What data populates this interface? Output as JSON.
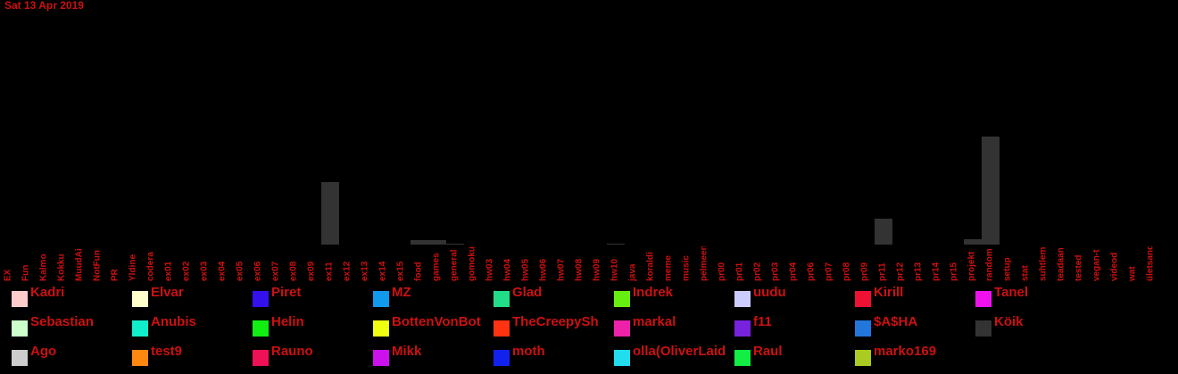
{
  "chart_data": {
    "type": "bar",
    "stacked": true,
    "title": "Sat 13 Apr 2019",
    "categories": [
      "EX",
      "Fun",
      "Kalmo",
      "Kokku",
      "MuudAi",
      "NotFun",
      "PR",
      "Yldine",
      "codera",
      "ex01",
      "ex02",
      "ex03",
      "ex04",
      "ex05",
      "ex06",
      "ex07",
      "ex08",
      "ex09",
      "ex11",
      "ex12",
      "ex13",
      "ex14",
      "ex15",
      "food",
      "games",
      "general",
      "gomoku",
      "hw03",
      "hw04",
      "hw05",
      "hw06",
      "hw07",
      "hw08",
      "hw09",
      "hw10",
      "java",
      "koraldi",
      "meme",
      "music",
      "pelmeen",
      "pr00",
      "pr01",
      "pr02",
      "pr03",
      "pr04",
      "pr06",
      "pr07",
      "pr08",
      "pr09",
      "pr11",
      "pr12",
      "pr13",
      "pr14",
      "pr15",
      "projekt",
      "random",
      "setup",
      "stat",
      "suhtlem",
      "teadaan",
      "tested",
      "vegan-t",
      "videod",
      "wat",
      "ületsand"
    ],
    "ylim": [
      0,
      260
    ],
    "series": [
      {
        "name": "Kadri",
        "color": "#ffcccc"
      },
      {
        "name": "Elvar",
        "color": "#ffffcc"
      },
      {
        "name": "Piret",
        "color": "#3311ee"
      },
      {
        "name": "MZ",
        "color": "#1199ee"
      },
      {
        "name": "Glad",
        "color": "#22dd88"
      },
      {
        "name": "Indrek",
        "color": "#66ee11"
      },
      {
        "name": "uudu",
        "color": "#ccccff"
      },
      {
        "name": "Kirill",
        "color": "#ee1133"
      },
      {
        "name": "Tanel",
        "color": "#ee11ee"
      },
      {
        "name": "Sebastian",
        "color": "#ccffcc"
      },
      {
        "name": "Anubis",
        "color": "#11eecc"
      },
      {
        "name": "Helin",
        "color": "#11ee11"
      },
      {
        "name": "BottenVonBot",
        "color": "#eeff11"
      },
      {
        "name": "TheCreepySh",
        "color": "#ff3311"
      },
      {
        "name": "markal",
        "color": "#ee22aa"
      },
      {
        "name": "f11",
        "color": "#7722dd"
      },
      {
        "name": "$A$HA",
        "color": "#2277dd"
      },
      {
        "name": "Köik",
        "color": "#333333",
        "values": [
          0,
          0,
          0,
          0,
          0,
          0,
          0,
          0,
          0,
          0,
          0,
          0,
          0,
          0,
          0,
          0,
          0,
          0,
          70,
          0,
          0,
          0,
          0,
          5,
          5,
          1,
          0,
          0,
          0,
          0,
          0,
          0,
          0,
          0,
          1,
          0,
          0,
          0,
          0,
          0,
          0,
          0,
          0,
          0,
          0,
          0,
          0,
          0,
          0,
          29,
          0,
          0,
          0,
          0,
          6,
          121,
          0,
          0,
          0,
          0,
          0,
          0,
          0,
          0,
          0
        ]
      },
      {
        "name": "Ago",
        "color": "#cccccc"
      },
      {
        "name": "test9",
        "color": "#ff8811"
      },
      {
        "name": "Rauno",
        "color": "#ee1155"
      },
      {
        "name": "Mikk",
        "color": "#cc11ee"
      },
      {
        "name": "moth",
        "color": "#1122ee"
      },
      {
        "name": "olla(OliverLaid",
        "color": "#22ddee"
      },
      {
        "name": "Raul",
        "color": "#11ee44"
      },
      {
        "name": "marko169",
        "color": "#aacc22"
      }
    ]
  }
}
